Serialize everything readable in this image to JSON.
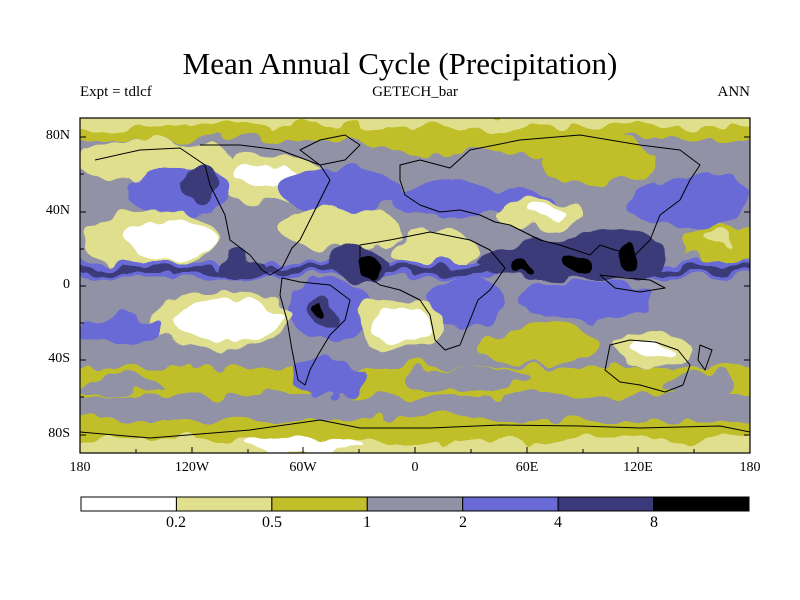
{
  "title": "Mean Annual Cycle (Precipitation)",
  "subtitle_left": "Expt = tdlcf",
  "subtitle_center": "GETECH_bar",
  "subtitle_right": "ANN",
  "lat_labels": [
    "80N",
    "40N",
    "0",
    "40S",
    "80S"
  ],
  "lon_labels": [
    "180",
    "120W",
    "60W",
    "0",
    "60E",
    "120E",
    "180"
  ],
  "colorbar": {
    "colors": [
      "#ffffff",
      "#e0df8e",
      "#c0bf2a",
      "#9192a6",
      "#6a6ad6",
      "#3a3a7a",
      "#000000"
    ],
    "labels": [
      "0.2",
      "0.5",
      "1",
      "2",
      "4",
      "8"
    ]
  }
}
